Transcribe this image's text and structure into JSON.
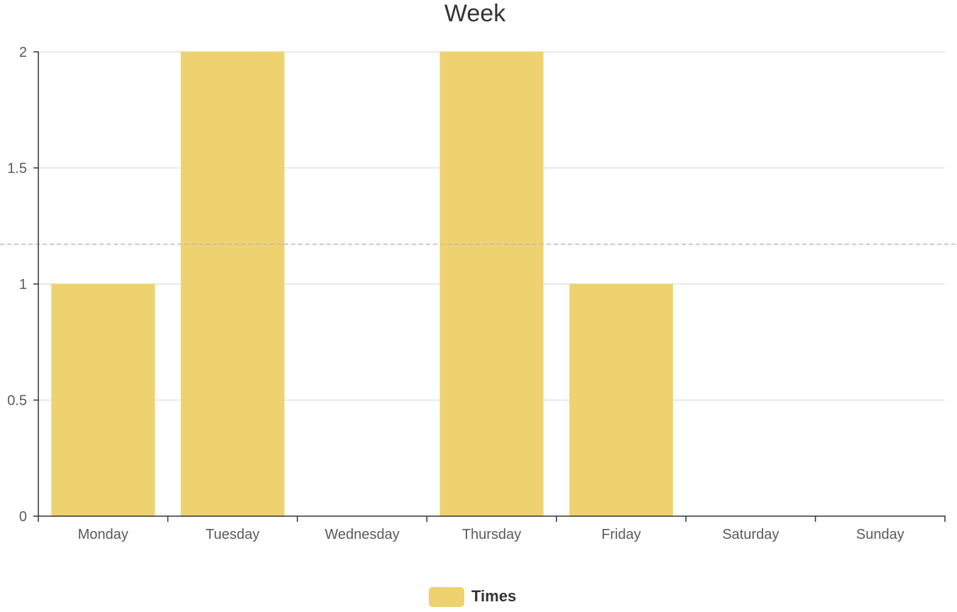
{
  "chart_data": {
    "type": "bar",
    "title": "Week",
    "categories": [
      "Monday",
      "Tuesday",
      "Wednesday",
      "Thursday",
      "Friday",
      "Saturday",
      "Sunday"
    ],
    "series": [
      {
        "name": "Times",
        "values": [
          1,
          2,
          0,
          2,
          1,
          0,
          0
        ],
        "color": "#eed26f"
      }
    ],
    "ylim": [
      0,
      2
    ],
    "yticks": [
      "0",
      "0.5",
      "1",
      "1.5",
      "2"
    ],
    "average_line": 1.1714,
    "grid": true,
    "legend_position": "bottom-center",
    "colors": {
      "bar": "#eed26f",
      "grid": "#e0e0e0",
      "axis": "#333333",
      "average_line": "#bbbbbb"
    }
  }
}
